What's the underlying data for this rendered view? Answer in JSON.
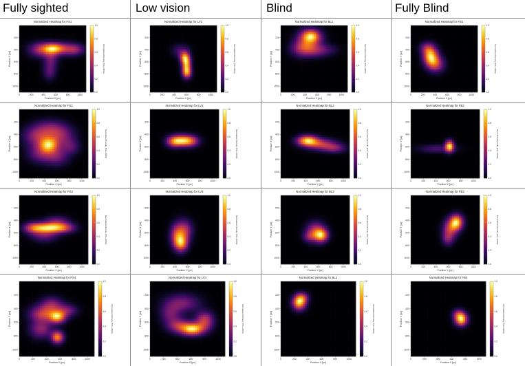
{
  "columns": [
    "Fully sighted",
    "Low vision",
    "Blind",
    "Fully Blind"
  ],
  "chart_data": {
    "type": "heatmap",
    "grid": {
      "rows": 4,
      "cols": 4
    },
    "shared": {
      "xlabel": "Position X [px]",
      "ylabel": "Position Y [px]",
      "colorbar_label": "Normalized Density (5%–100%)",
      "x_ticks": [
        0,
        200,
        400,
        600,
        800,
        1000
      ],
      "y_ticks": [
        200,
        400,
        600,
        800,
        1000
      ],
      "xlim": [
        0,
        1100
      ],
      "ylim": [
        1100,
        0
      ],
      "colorbar_ticks": [
        "0.0",
        "0.2",
        "0.4",
        "0.6",
        "0.8",
        "1.0"
      ],
      "colormap": [
        "#000004",
        "#1b0c41",
        "#4a0c6b",
        "#781c6d",
        "#a52c60",
        "#cf4446",
        "#ed6925",
        "#fb9b06",
        "#f7d13d",
        "#fcffa4"
      ]
    },
    "panels": [
      {
        "group": "Fully sighted",
        "title": "Normalized Heatmap for FS1",
        "blobs": [
          {
            "x": 560,
            "y": 380,
            "sx": 120,
            "sy": 60,
            "w": 1.0
          },
          {
            "x": 350,
            "y": 400,
            "sx": 130,
            "sy": 80,
            "w": 0.55
          },
          {
            "x": 780,
            "y": 390,
            "sx": 160,
            "sy": 70,
            "w": 0.45
          },
          {
            "x": 520,
            "y": 550,
            "sx": 80,
            "sy": 110,
            "w": 0.4
          },
          {
            "x": 500,
            "y": 770,
            "sx": 70,
            "sy": 90,
            "w": 0.3
          },
          {
            "x": 920,
            "y": 400,
            "sx": 100,
            "sy": 60,
            "w": 0.3
          }
        ]
      },
      {
        "group": "Low vision",
        "title": "Normalized Heatmap for LV1",
        "blobs": [
          {
            "x": 600,
            "y": 640,
            "sx": 50,
            "sy": 110,
            "w": 1.0
          },
          {
            "x": 560,
            "y": 530,
            "sx": 50,
            "sy": 60,
            "w": 0.6
          },
          {
            "x": 610,
            "y": 780,
            "sx": 50,
            "sy": 60,
            "w": 0.6
          },
          {
            "x": 500,
            "y": 420,
            "sx": 90,
            "sy": 70,
            "w": 0.25
          }
        ]
      },
      {
        "group": "Blind",
        "title": "Normalized Heatmap for BL1",
        "blobs": [
          {
            "x": 480,
            "y": 230,
            "sx": 130,
            "sy": 110,
            "w": 1.0
          },
          {
            "x": 500,
            "y": 170,
            "sx": 90,
            "sy": 60,
            "w": 0.7
          },
          {
            "x": 340,
            "y": 380,
            "sx": 120,
            "sy": 90,
            "w": 0.55
          },
          {
            "x": 560,
            "y": 420,
            "sx": 140,
            "sy": 70,
            "w": 0.45
          },
          {
            "x": 780,
            "y": 400,
            "sx": 120,
            "sy": 60,
            "w": 0.2
          }
        ]
      },
      {
        "group": "Fully Blind",
        "title": "Normalized Heatmap for FB1",
        "blobs": [
          {
            "x": 330,
            "y": 520,
            "sx": 80,
            "sy": 100,
            "w": 1.0
          },
          {
            "x": 420,
            "y": 640,
            "sx": 90,
            "sy": 90,
            "w": 0.5
          },
          {
            "x": 270,
            "y": 380,
            "sx": 80,
            "sy": 70,
            "w": 0.4
          }
        ]
      },
      {
        "group": "Fully sighted",
        "title": "Normalized Heatmap for FS2",
        "blobs": [
          {
            "x": 470,
            "y": 570,
            "sx": 100,
            "sy": 80,
            "w": 1.0
          },
          {
            "x": 300,
            "y": 430,
            "sx": 150,
            "sy": 110,
            "w": 0.55
          },
          {
            "x": 650,
            "y": 430,
            "sx": 150,
            "sy": 110,
            "w": 0.5
          },
          {
            "x": 350,
            "y": 700,
            "sx": 140,
            "sy": 100,
            "w": 0.45
          },
          {
            "x": 600,
            "y": 750,
            "sx": 130,
            "sy": 100,
            "w": 0.4
          },
          {
            "x": 500,
            "y": 300,
            "sx": 160,
            "sy": 90,
            "w": 0.35
          },
          {
            "x": 820,
            "y": 600,
            "sx": 100,
            "sy": 80,
            "w": 0.3
          }
        ]
      },
      {
        "group": "Low vision",
        "title": "Normalized Heatmap for LV2",
        "blobs": [
          {
            "x": 510,
            "y": 500,
            "sx": 120,
            "sy": 60,
            "w": 1.0
          },
          {
            "x": 380,
            "y": 520,
            "sx": 80,
            "sy": 60,
            "w": 0.45
          },
          {
            "x": 660,
            "y": 510,
            "sx": 90,
            "sy": 60,
            "w": 0.4
          }
        ]
      },
      {
        "group": "Blind",
        "title": "Normalized Heatmap for BL2",
        "blobs": [
          {
            "x": 430,
            "y": 500,
            "sx": 110,
            "sy": 55,
            "w": 1.0
          },
          {
            "x": 640,
            "y": 560,
            "sx": 160,
            "sy": 60,
            "w": 0.55
          },
          {
            "x": 860,
            "y": 620,
            "sx": 120,
            "sy": 50,
            "w": 0.35
          }
        ]
      },
      {
        "group": "Fully Blind",
        "title": "Normalized Heatmap for FB2",
        "blobs": [
          {
            "x": 620,
            "y": 590,
            "sx": 45,
            "sy": 60,
            "w": 1.0
          },
          {
            "x": 420,
            "y": 630,
            "sx": 200,
            "sy": 45,
            "w": 0.22
          }
        ]
      },
      {
        "group": "Fully sighted",
        "title": "Normalized Heatmap for FS3",
        "blobs": [
          {
            "x": 460,
            "y": 520,
            "sx": 150,
            "sy": 55,
            "w": 1.0
          },
          {
            "x": 230,
            "y": 520,
            "sx": 110,
            "sy": 60,
            "w": 0.6
          },
          {
            "x": 700,
            "y": 520,
            "sx": 130,
            "sy": 55,
            "w": 0.6
          },
          {
            "x": 400,
            "y": 640,
            "sx": 140,
            "sy": 70,
            "w": 0.35
          },
          {
            "x": 600,
            "y": 420,
            "sx": 130,
            "sy": 60,
            "w": 0.35
          }
        ]
      },
      {
        "group": "Low vision",
        "title": "Normalized Heatmap for LV3",
        "blobs": [
          {
            "x": 500,
            "y": 760,
            "sx": 70,
            "sy": 90,
            "w": 1.0
          },
          {
            "x": 540,
            "y": 560,
            "sx": 90,
            "sy": 110,
            "w": 0.65
          },
          {
            "x": 420,
            "y": 650,
            "sx": 70,
            "sy": 120,
            "w": 0.55
          }
        ]
      },
      {
        "group": "Blind",
        "title": "Normalized Heatmap for BL3",
        "blobs": [
          {
            "x": 650,
            "y": 640,
            "sx": 70,
            "sy": 70,
            "w": 1.0
          },
          {
            "x": 560,
            "y": 580,
            "sx": 100,
            "sy": 100,
            "w": 0.7
          },
          {
            "x": 460,
            "y": 660,
            "sx": 70,
            "sy": 60,
            "w": 0.35
          }
        ]
      },
      {
        "group": "Fully Blind",
        "title": "Normalized Heatmap for FB3",
        "blobs": [
          {
            "x": 730,
            "y": 430,
            "sx": 70,
            "sy": 80,
            "w": 1.0
          },
          {
            "x": 630,
            "y": 540,
            "sx": 80,
            "sy": 100,
            "w": 0.55
          },
          {
            "x": 590,
            "y": 700,
            "sx": 60,
            "sy": 70,
            "w": 0.3
          }
        ]
      },
      {
        "group": "Fully sighted",
        "title": "Normalized Heatmap for FS4",
        "blobs": [
          {
            "x": 560,
            "y": 520,
            "sx": 80,
            "sy": 60,
            "w": 0.9
          },
          {
            "x": 560,
            "y": 820,
            "sx": 60,
            "sy": 60,
            "w": 0.8
          },
          {
            "x": 350,
            "y": 480,
            "sx": 130,
            "sy": 80,
            "w": 0.55
          },
          {
            "x": 480,
            "y": 350,
            "sx": 110,
            "sy": 80,
            "w": 0.4
          },
          {
            "x": 320,
            "y": 700,
            "sx": 110,
            "sy": 90,
            "w": 0.4
          },
          {
            "x": 700,
            "y": 430,
            "sx": 100,
            "sy": 60,
            "w": 0.35
          }
        ]
      },
      {
        "group": "Low vision",
        "title": "Normalized Heatmap for LV4",
        "blobs": [
          {
            "x": 620,
            "y": 700,
            "sx": 110,
            "sy": 60,
            "w": 1.0
          },
          {
            "x": 800,
            "y": 580,
            "sx": 90,
            "sy": 90,
            "w": 0.55
          },
          {
            "x": 420,
            "y": 650,
            "sx": 110,
            "sy": 70,
            "w": 0.45
          },
          {
            "x": 470,
            "y": 320,
            "sx": 170,
            "sy": 90,
            "w": 0.35
          },
          {
            "x": 300,
            "y": 480,
            "sx": 100,
            "sy": 100,
            "w": 0.3
          }
        ]
      },
      {
        "group": "Blind",
        "title": "Normalized Heatmap for BL4",
        "blobs": [
          {
            "x": 270,
            "y": 310,
            "sx": 65,
            "sy": 70,
            "w": 1.0
          },
          {
            "x": 320,
            "y": 240,
            "sx": 60,
            "sy": 50,
            "w": 0.4
          }
        ]
      },
      {
        "group": "Fully Blind",
        "title": "Normalized Heatmap for FB4",
        "blobs": [
          {
            "x": 740,
            "y": 560,
            "sx": 60,
            "sy": 60,
            "w": 1.0
          },
          {
            "x": 700,
            "y": 480,
            "sx": 60,
            "sy": 50,
            "w": 0.4
          }
        ]
      }
    ]
  }
}
